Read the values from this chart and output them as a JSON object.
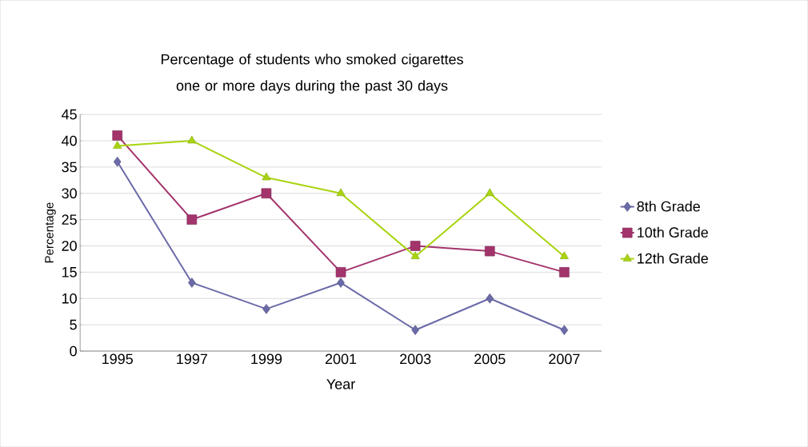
{
  "chart_data": {
    "type": "line",
    "title": "Percentage of students who smoked  cigarettes one or more days during the past 30 days",
    "xlabel": "Year",
    "ylabel": "Percentage",
    "categories": [
      "1995",
      "1997",
      "1999",
      "2001",
      "2003",
      "2005",
      "2007"
    ],
    "series": [
      {
        "name": "8th Grade",
        "color": "#6b6aa8",
        "marker": "diamond",
        "values": [
          36,
          13,
          8,
          13,
          4,
          10,
          4
        ]
      },
      {
        "name": "10th Grade",
        "color": "#a3336b",
        "marker": "square",
        "values": [
          41,
          25,
          30,
          15,
          20,
          19,
          15
        ]
      },
      {
        "name": "12th Grade",
        "color": "#a8d40f",
        "marker": "triangle",
        "values": [
          39,
          40,
          33,
          30,
          18,
          30,
          18
        ]
      }
    ],
    "ylim": [
      0,
      45
    ],
    "yticks": [
      0,
      5,
      10,
      15,
      20,
      25,
      30,
      35,
      40,
      45
    ],
    "grid": "y",
    "legend": "right"
  }
}
